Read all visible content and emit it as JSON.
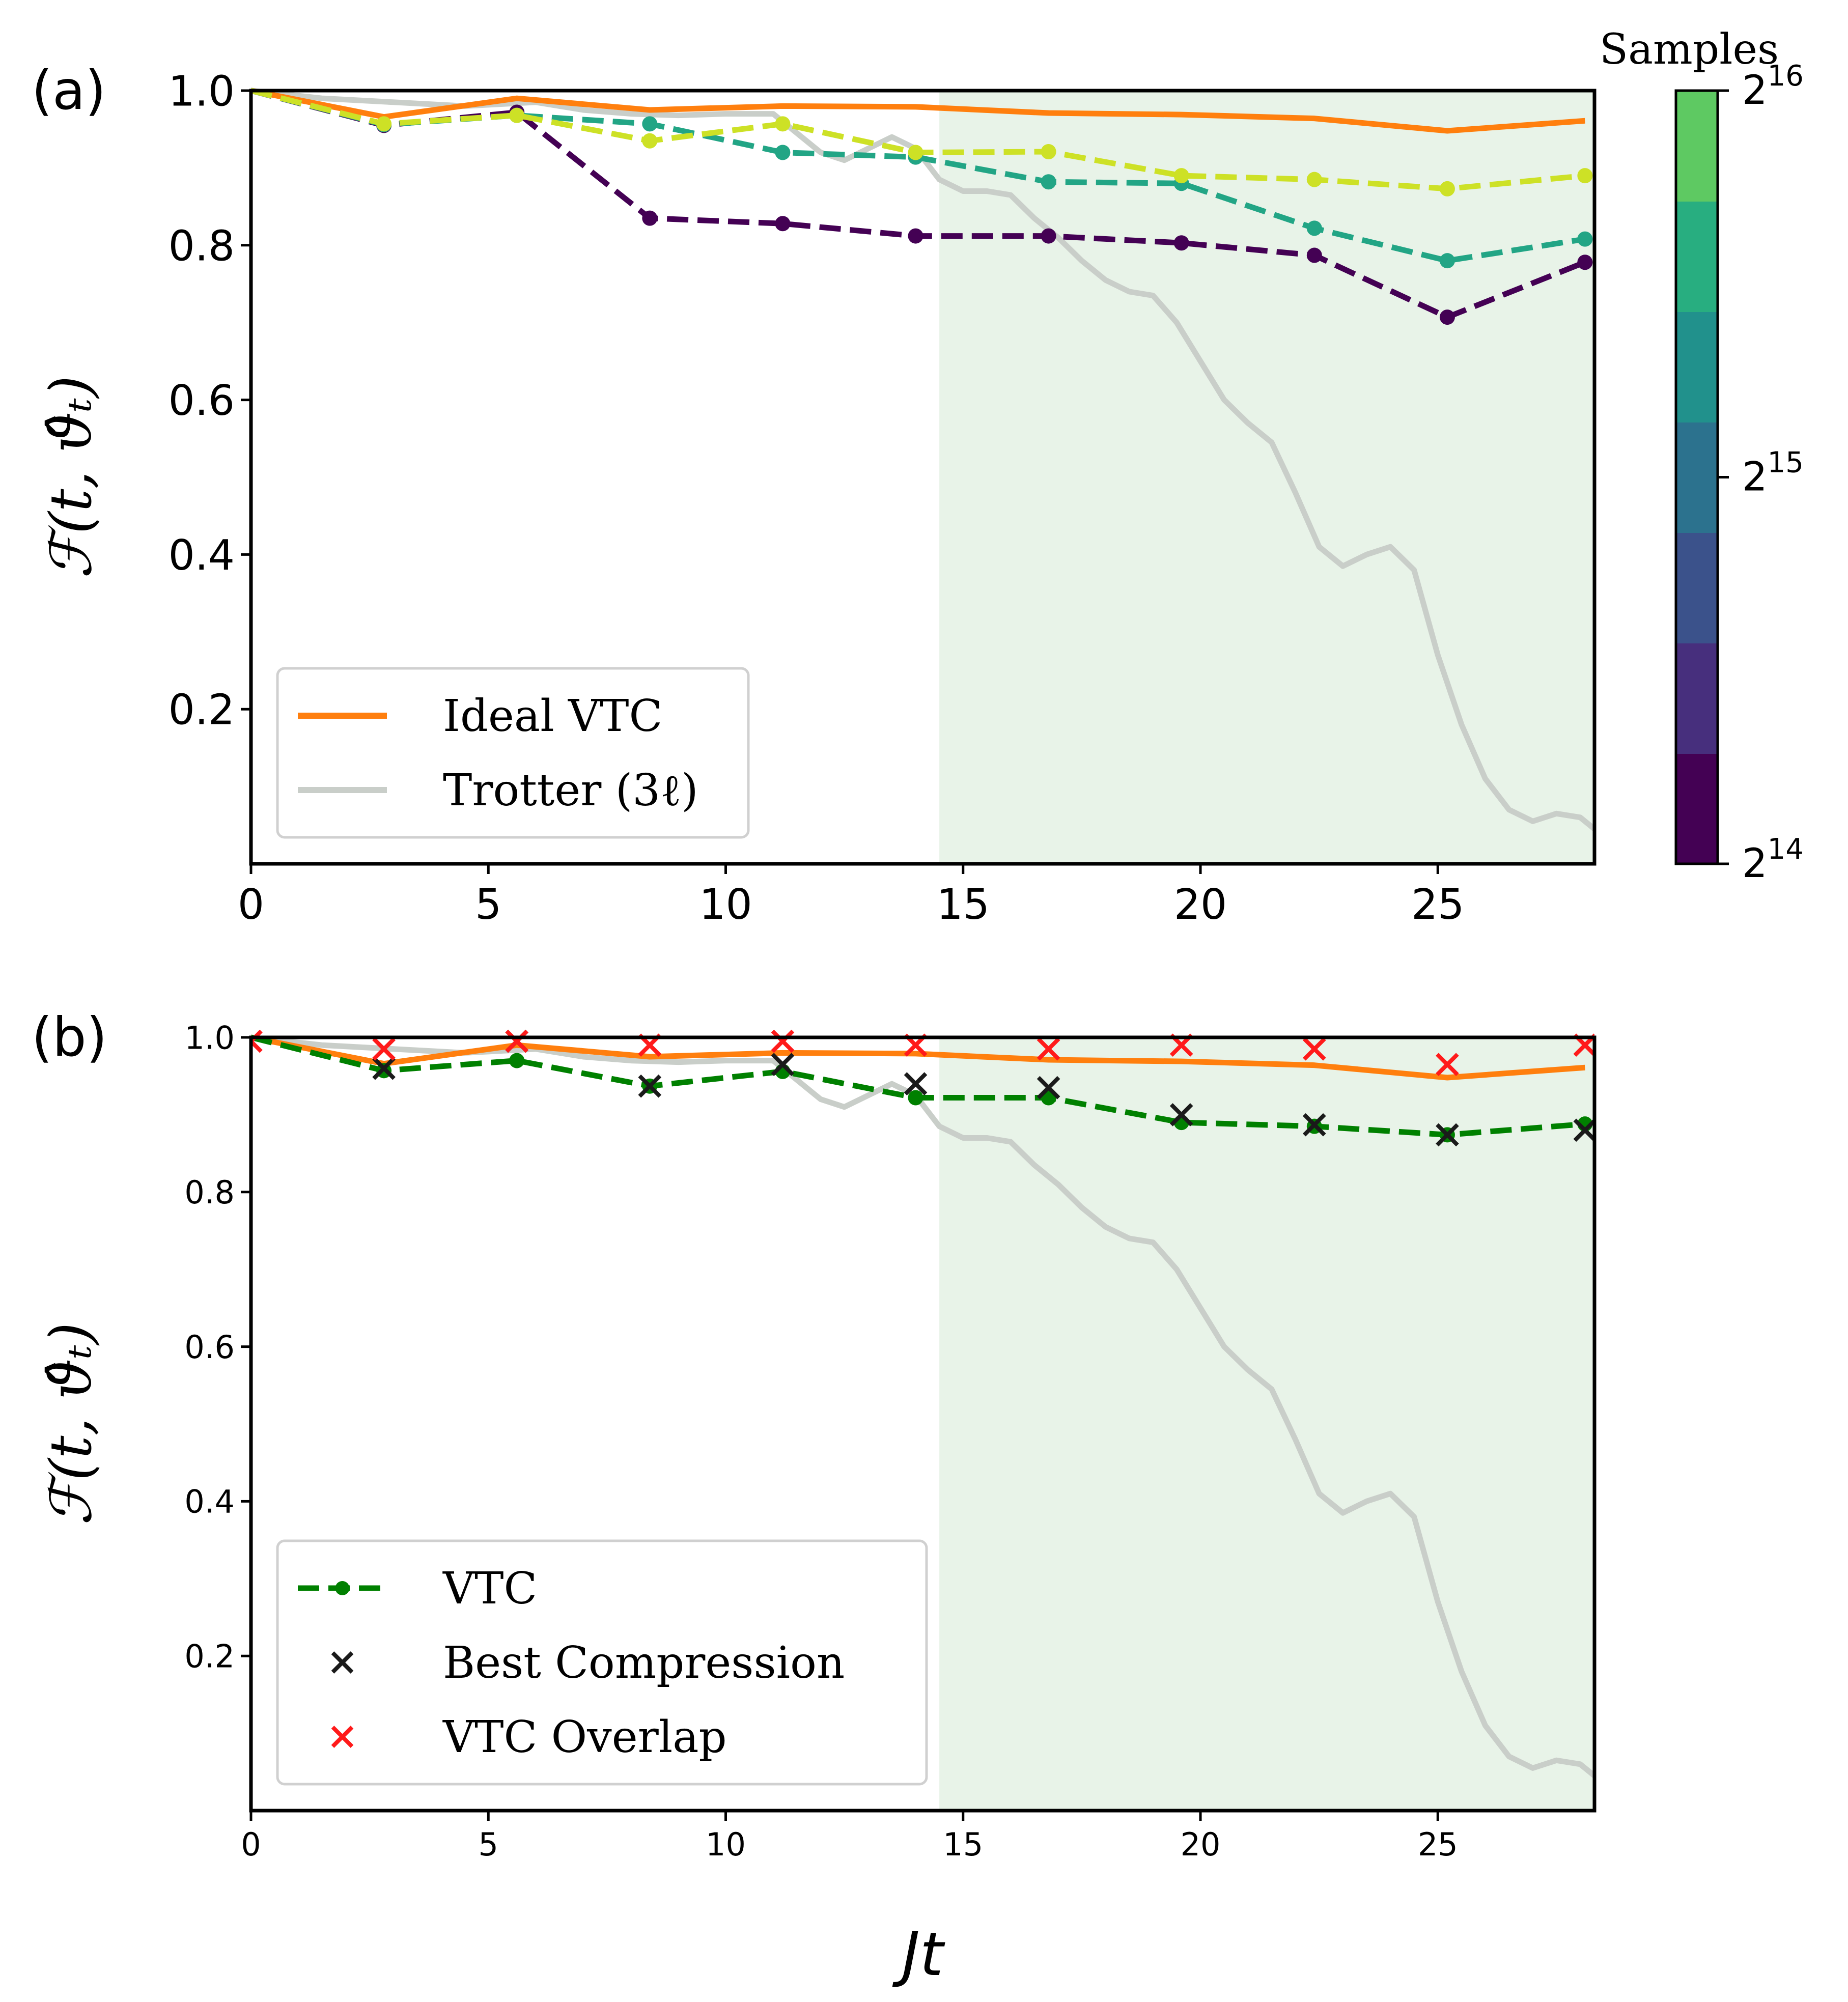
{
  "figure": {
    "ylabel": "ℱ(t, ϑ̂ₜ)",
    "xlabel": "Jt",
    "shade_start": 14.5,
    "colors": {
      "ideal": "#ff7f0e",
      "trotter": "#c9cec9",
      "shade": "#e8f3e8",
      "vtc": "#008000",
      "best": "#1a1a1a",
      "overlap": "#ff1a1a"
    }
  },
  "colorbar": {
    "title": "Samples",
    "ticks": [
      {
        "base": "2",
        "exp": "16",
        "value": 16
      },
      {
        "base": "2",
        "exp": "15",
        "value": 15
      },
      {
        "base": "2",
        "exp": "14",
        "value": 14
      }
    ],
    "bands": [
      "#440154",
      "#472f7d",
      "#3b528b",
      "#2c728e",
      "#21918c",
      "#28ae80",
      "#5ec962"
    ],
    "range": [
      14,
      16
    ]
  },
  "chart_data": [
    {
      "panel_label": "(a)",
      "type": "line",
      "xlim": [
        0,
        28.3
      ],
      "ylim": [
        0,
        1.0
      ],
      "xticks": [
        "0",
        "5",
        "10",
        "15",
        "20",
        "25"
      ],
      "yticks": [
        "0.2",
        "0.4",
        "0.6",
        "0.8",
        "1.0"
      ],
      "x": [
        0,
        2.8,
        5.6,
        8.4,
        11.2,
        14.0,
        16.8,
        19.6,
        22.4,
        25.2,
        28.1
      ],
      "legend": [
        {
          "label": "Ideal VTC",
          "style": "orange-line"
        },
        {
          "label": "Trotter (3ℓ)",
          "style": "gray-line"
        }
      ],
      "series": [
        {
          "name": "Ideal VTC",
          "values": [
            1.0,
            0.966,
            0.99,
            0.975,
            0.98,
            0.979,
            0.971,
            0.969,
            0.964,
            0.948,
            0.961
          ]
        },
        {
          "name": "2^14 samples",
          "colorbar_value": 14,
          "values": [
            1.0,
            0.955,
            0.972,
            0.835,
            0.828,
            0.812,
            0.812,
            0.803,
            0.787,
            0.707,
            0.778
          ]
        },
        {
          "name": "2^15 samples",
          "colorbar_value": 15.17,
          "values": [
            1.0,
            0.956,
            0.968,
            0.957,
            0.92,
            0.914,
            0.882,
            0.88,
            0.822,
            0.78,
            0.808
          ]
        },
        {
          "name": "2^16 samples",
          "colorbar_value": 15.85,
          "values": [
            1.0,
            0.957,
            0.968,
            0.935,
            0.957,
            0.92,
            0.921,
            0.89,
            0.885,
            0.873,
            0.89
          ]
        }
      ],
      "trotter": {
        "x": [
          0,
          1.5,
          3,
          4.5,
          6,
          7,
          8,
          9,
          10,
          11,
          12,
          12.5,
          13,
          13.5,
          14,
          14.5,
          15,
          15.5,
          16,
          16.5,
          17,
          17.5,
          18,
          18.5,
          19,
          19.5,
          20,
          20.5,
          21,
          21.5,
          22,
          22.5,
          23,
          23.5,
          24,
          24.5,
          25,
          25.5,
          26,
          26.5,
          27,
          27.5,
          28,
          28.3
        ],
        "values": [
          1.0,
          0.99,
          0.985,
          0.98,
          0.985,
          0.975,
          0.97,
          0.968,
          0.97,
          0.97,
          0.92,
          0.91,
          0.925,
          0.94,
          0.925,
          0.885,
          0.87,
          0.87,
          0.865,
          0.835,
          0.81,
          0.78,
          0.755,
          0.74,
          0.735,
          0.7,
          0.65,
          0.6,
          0.57,
          0.545,
          0.48,
          0.41,
          0.385,
          0.4,
          0.41,
          0.38,
          0.27,
          0.18,
          0.11,
          0.07,
          0.055,
          0.065,
          0.06,
          0.045
        ]
      }
    },
    {
      "panel_label": "(b)",
      "type": "line",
      "xlim": [
        0,
        28.3
      ],
      "ylim": [
        0,
        1.0
      ],
      "xticks": [
        "0",
        "5",
        "10",
        "15",
        "20",
        "25"
      ],
      "yticks": [
        "0.2",
        "0.4",
        "0.6",
        "0.8",
        "1.0"
      ],
      "x": [
        0,
        2.8,
        5.6,
        8.4,
        11.2,
        14.0,
        16.8,
        19.6,
        22.4,
        25.2,
        28.1
      ],
      "legend": [
        {
          "label": "VTC",
          "style": "green-dashed-dot"
        },
        {
          "label": "Best Compression",
          "style": "black-x"
        },
        {
          "label": "VTC Overlap",
          "style": "red-x"
        }
      ],
      "series": [
        {
          "name": "Ideal VTC",
          "values": [
            1.0,
            0.966,
            0.99,
            0.975,
            0.98,
            0.979,
            0.971,
            0.969,
            0.964,
            0.948,
            0.961
          ]
        },
        {
          "name": "VTC",
          "values": [
            1.0,
            0.957,
            0.97,
            0.937,
            0.956,
            0.922,
            0.922,
            0.89,
            0.885,
            0.874,
            0.888
          ]
        },
        {
          "name": "Best Compression",
          "values": [
            null,
            0.96,
            0.995,
            0.937,
            0.965,
            0.94,
            0.935,
            0.9,
            0.887,
            0.874,
            0.88
          ]
        },
        {
          "name": "VTC Overlap",
          "values": [
            0.995,
            0.985,
            0.995,
            0.99,
            0.995,
            0.99,
            0.985,
            0.99,
            0.985,
            0.965,
            0.99
          ]
        }
      ],
      "trotter": {
        "x": [
          0,
          1.5,
          3,
          4.5,
          6,
          7,
          8,
          9,
          10,
          11,
          12,
          12.5,
          13,
          13.5,
          14,
          14.5,
          15,
          15.5,
          16,
          16.5,
          17,
          17.5,
          18,
          18.5,
          19,
          19.5,
          20,
          20.5,
          21,
          21.5,
          22,
          22.5,
          23,
          23.5,
          24,
          24.5,
          25,
          25.5,
          26,
          26.5,
          27,
          27.5,
          28,
          28.3
        ],
        "values": [
          1.0,
          0.99,
          0.985,
          0.98,
          0.985,
          0.975,
          0.97,
          0.968,
          0.97,
          0.97,
          0.92,
          0.91,
          0.925,
          0.94,
          0.925,
          0.885,
          0.87,
          0.87,
          0.865,
          0.835,
          0.81,
          0.78,
          0.755,
          0.74,
          0.735,
          0.7,
          0.65,
          0.6,
          0.57,
          0.545,
          0.48,
          0.41,
          0.385,
          0.4,
          0.41,
          0.38,
          0.27,
          0.18,
          0.11,
          0.07,
          0.055,
          0.065,
          0.06,
          0.045
        ]
      }
    }
  ]
}
